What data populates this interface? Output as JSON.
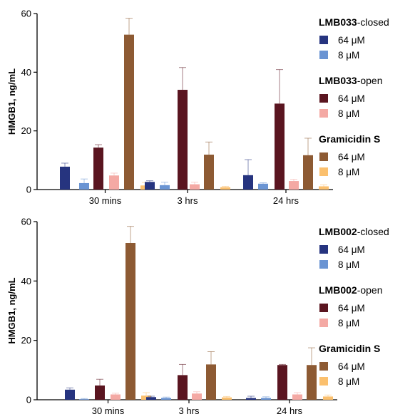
{
  "colors": {
    "dark_blue": "#26347f",
    "light_blue": "#6a94d3",
    "dark_red": "#5a1520",
    "light_pink": "#f4a9a4",
    "brown": "#8d5a33",
    "orange": "#fbc06e"
  },
  "chart_data": [
    {
      "type": "bar",
      "ylabel": "HMGB1, ng/mL",
      "ylim": [
        0,
        60
      ],
      "yticks": [
        0,
        20,
        40,
        60
      ],
      "categories": [
        "30 mins",
        "3 hrs",
        "24 hrs"
      ],
      "grid": false,
      "legend_position": "right",
      "legend_groups": [
        {
          "bold": "LMB033",
          "suffix": "-closed"
        },
        {
          "bold": "LMB033",
          "suffix": "-open"
        },
        {
          "bold": "Gramicidin S",
          "suffix": ""
        }
      ],
      "series": [
        {
          "name": "64 μM",
          "group": 0,
          "color": "#26347f",
          "values": [
            7.8,
            2.6,
            4.9
          ],
          "errors": [
            1.2,
            0.4,
            5.3
          ]
        },
        {
          "name": "8 μM",
          "group": 0,
          "color": "#6a94d3",
          "values": [
            2.2,
            1.5,
            2.0
          ],
          "errors": [
            1.4,
            1.0,
            0.3
          ]
        },
        {
          "name": "64 μM",
          "group": 1,
          "color": "#5a1520",
          "values": [
            14.3,
            34.0,
            29.3
          ],
          "errors": [
            1.0,
            7.6,
            11.6
          ]
        },
        {
          "name": "8 μM",
          "group": 1,
          "color": "#f4a9a4",
          "values": [
            4.8,
            1.8,
            2.9
          ],
          "errors": [
            0.8,
            0.7,
            0.6
          ]
        },
        {
          "name": "64 μM",
          "group": 2,
          "color": "#8d5a33",
          "values": [
            52.8,
            11.9,
            11.7
          ],
          "errors": [
            5.6,
            4.3,
            5.8
          ]
        },
        {
          "name": "8 μM",
          "group": 2,
          "color": "#fbc06e",
          "values": [
            1.4,
            0.8,
            1.1
          ],
          "errors": [
            1.0,
            0.3,
            0.5
          ]
        }
      ]
    },
    {
      "type": "bar",
      "ylabel": "HMGB1, ng/mL",
      "ylim": [
        0,
        60
      ],
      "yticks": [
        0,
        20,
        40,
        60
      ],
      "categories": [
        "30 mins",
        "3 hrs",
        "24 hrs"
      ],
      "grid": false,
      "legend_position": "right",
      "legend_groups": [
        {
          "bold": "LMB002",
          "suffix": "-closed"
        },
        {
          "bold": "LMB002",
          "suffix": "-open"
        },
        {
          "bold": "Gramicidin S",
          "suffix": ""
        }
      ],
      "series": [
        {
          "name": "64 μM",
          "group": 0,
          "color": "#26347f",
          "values": [
            3.4,
            0.9,
            0.6
          ],
          "errors": [
            0.6,
            0.3,
            0.6
          ]
        },
        {
          "name": "8 μM",
          "group": 0,
          "color": "#6a94d3",
          "values": [
            0.2,
            0.6,
            0.6
          ],
          "errors": [
            0.2,
            0.3,
            0.4
          ]
        },
        {
          "name": "64 μM",
          "group": 1,
          "color": "#5a1520",
          "values": [
            4.8,
            8.3,
            11.7
          ],
          "errors": [
            2.1,
            3.6,
            0.2
          ]
        },
        {
          "name": "8 μM",
          "group": 1,
          "color": "#f4a9a4",
          "values": [
            1.8,
            2.1,
            1.8
          ],
          "errors": [
            0.4,
            0.6,
            0.6
          ]
        },
        {
          "name": "64 μM",
          "group": 2,
          "color": "#8d5a33",
          "values": [
            52.8,
            11.9,
            11.7
          ],
          "errors": [
            5.6,
            4.3,
            5.8
          ]
        },
        {
          "name": "8 μM",
          "group": 2,
          "color": "#fbc06e",
          "values": [
            1.4,
            0.8,
            1.1
          ],
          "errors": [
            1.0,
            0.3,
            0.5
          ]
        }
      ]
    }
  ]
}
